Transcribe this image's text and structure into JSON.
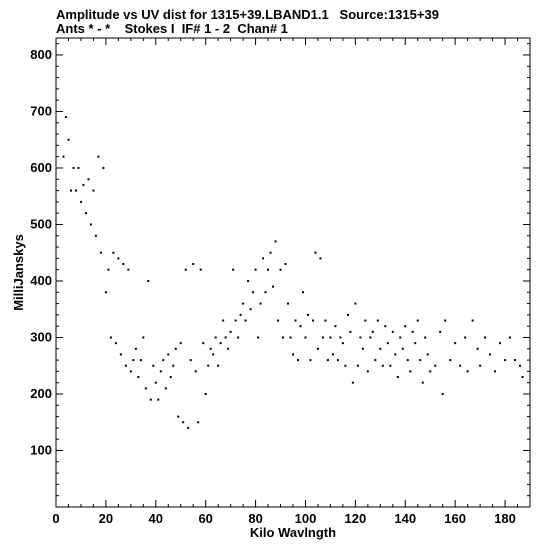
{
  "header": {
    "line1": "Amplitude vs UV dist for 1315+39.LBAND1.1   Source:1315+39",
    "line2": "Ants * - *    Stokes I  IF# 1 - 2  Chan# 1"
  },
  "chart_data": {
    "type": "scatter",
    "title": "Amplitude vs UV dist for 1315+39.LBAND1.1   Source:1315+39",
    "subtitle": "Ants * - *    Stokes I  IF# 1 - 2  Chan# 1",
    "xlabel": "Kilo Wavlngth",
    "ylabel": "MilliJanskys",
    "xlim": [
      0,
      190
    ],
    "ylim": [
      0,
      830
    ],
    "xticks": [
      0,
      20,
      40,
      60,
      80,
      100,
      120,
      140,
      160,
      180
    ],
    "yticks": [
      100,
      200,
      300,
      400,
      500,
      600,
      700,
      800
    ],
    "x_tick_labels": [
      "0",
      "20",
      "40",
      "60",
      "80",
      "100",
      "120",
      "140",
      "160",
      "180"
    ],
    "y_tick_labels": [
      "100",
      "200",
      "300",
      "400",
      "500",
      "600",
      "700",
      "800"
    ],
    "grid": false,
    "marker_color": "#000000",
    "series": [
      {
        "points": [
          [
            3,
            620
          ],
          [
            4,
            690
          ],
          [
            5,
            650
          ],
          [
            6,
            560
          ],
          [
            7,
            600
          ],
          [
            8,
            560
          ],
          [
            9,
            600
          ],
          [
            10,
            540
          ],
          [
            11,
            570
          ],
          [
            12,
            520
          ],
          [
            13,
            580
          ],
          [
            14,
            500
          ],
          [
            15,
            560
          ],
          [
            16,
            480
          ],
          [
            17,
            620
          ],
          [
            18,
            450
          ],
          [
            19,
            600
          ],
          [
            20,
            380
          ],
          [
            21,
            420
          ],
          [
            22,
            300
          ],
          [
            23,
            450
          ],
          [
            24,
            290
          ],
          [
            25,
            440
          ],
          [
            26,
            270
          ],
          [
            27,
            430
          ],
          [
            28,
            250
          ],
          [
            29,
            420
          ],
          [
            30,
            240
          ],
          [
            31,
            260
          ],
          [
            32,
            280
          ],
          [
            33,
            230
          ],
          [
            34,
            260
          ],
          [
            35,
            300
          ],
          [
            36,
            210
          ],
          [
            37,
            400
          ],
          [
            38,
            190
          ],
          [
            39,
            250
          ],
          [
            40,
            220
          ],
          [
            41,
            190
          ],
          [
            42,
            240
          ],
          [
            43,
            260
          ],
          [
            44,
            210
          ],
          [
            45,
            270
          ],
          [
            46,
            230
          ],
          [
            47,
            250
          ],
          [
            48,
            280
          ],
          [
            49,
            160
          ],
          [
            50,
            290
          ],
          [
            51,
            150
          ],
          [
            52,
            420
          ],
          [
            53,
            140
          ],
          [
            54,
            260
          ],
          [
            55,
            430
          ],
          [
            56,
            240
          ],
          [
            57,
            150
          ],
          [
            58,
            420
          ],
          [
            59,
            290
          ],
          [
            60,
            200
          ],
          [
            61,
            250
          ],
          [
            62,
            280
          ],
          [
            63,
            270
          ],
          [
            64,
            300
          ],
          [
            65,
            250
          ],
          [
            66,
            290
          ],
          [
            67,
            330
          ],
          [
            68,
            300
          ],
          [
            69,
            280
          ],
          [
            70,
            310
          ],
          [
            71,
            420
          ],
          [
            72,
            330
          ],
          [
            73,
            300
          ],
          [
            74,
            340
          ],
          [
            75,
            360
          ],
          [
            76,
            330
          ],
          [
            77,
            400
          ],
          [
            78,
            350
          ],
          [
            79,
            380
          ],
          [
            80,
            420
          ],
          [
            81,
            300
          ],
          [
            82,
            360
          ],
          [
            83,
            440
          ],
          [
            84,
            380
          ],
          [
            85,
            420
          ],
          [
            86,
            450
          ],
          [
            87,
            390
          ],
          [
            88,
            470
          ],
          [
            89,
            330
          ],
          [
            90,
            420
          ],
          [
            91,
            300
          ],
          [
            92,
            430
          ],
          [
            93,
            360
          ],
          [
            94,
            300
          ],
          [
            95,
            270
          ],
          [
            96,
            330
          ],
          [
            97,
            260
          ],
          [
            98,
            320
          ],
          [
            99,
            380
          ],
          [
            100,
            300
          ],
          [
            101,
            340
          ],
          [
            102,
            260
          ],
          [
            103,
            330
          ],
          [
            104,
            450
          ],
          [
            105,
            280
          ],
          [
            106,
            440
          ],
          [
            107,
            300
          ],
          [
            108,
            330
          ],
          [
            109,
            260
          ],
          [
            110,
            300
          ],
          [
            111,
            270
          ],
          [
            112,
            320
          ],
          [
            113,
            260
          ],
          [
            114,
            300
          ],
          [
            115,
            290
          ],
          [
            116,
            250
          ],
          [
            117,
            340
          ],
          [
            118,
            310
          ],
          [
            119,
            220
          ],
          [
            120,
            360
          ],
          [
            121,
            250
          ],
          [
            122,
            300
          ],
          [
            123,
            280
          ],
          [
            124,
            330
          ],
          [
            125,
            240
          ],
          [
            126,
            300
          ],
          [
            127,
            310
          ],
          [
            128,
            260
          ],
          [
            129,
            330
          ],
          [
            130,
            280
          ],
          [
            131,
            250
          ],
          [
            132,
            320
          ],
          [
            133,
            290
          ],
          [
            134,
            250
          ],
          [
            135,
            310
          ],
          [
            136,
            270
          ],
          [
            137,
            230
          ],
          [
            138,
            300
          ],
          [
            139,
            280
          ],
          [
            140,
            320
          ],
          [
            141,
            260
          ],
          [
            142,
            240
          ],
          [
            143,
            310
          ],
          [
            144,
            290
          ],
          [
            145,
            330
          ],
          [
            146,
            260
          ],
          [
            147,
            220
          ],
          [
            148,
            300
          ],
          [
            149,
            270
          ],
          [
            150,
            240
          ],
          [
            152,
            250
          ],
          [
            154,
            310
          ],
          [
            155,
            200
          ],
          [
            156,
            330
          ],
          [
            158,
            260
          ],
          [
            160,
            290
          ],
          [
            162,
            250
          ],
          [
            164,
            300
          ],
          [
            165,
            240
          ],
          [
            167,
            330
          ],
          [
            169,
            280
          ],
          [
            170,
            250
          ],
          [
            172,
            300
          ],
          [
            174,
            270
          ],
          [
            176,
            240
          ],
          [
            178,
            290
          ],
          [
            180,
            260
          ],
          [
            182,
            300
          ],
          [
            184,
            260
          ],
          [
            186,
            250
          ],
          [
            187,
            230
          ]
        ]
      }
    ]
  }
}
